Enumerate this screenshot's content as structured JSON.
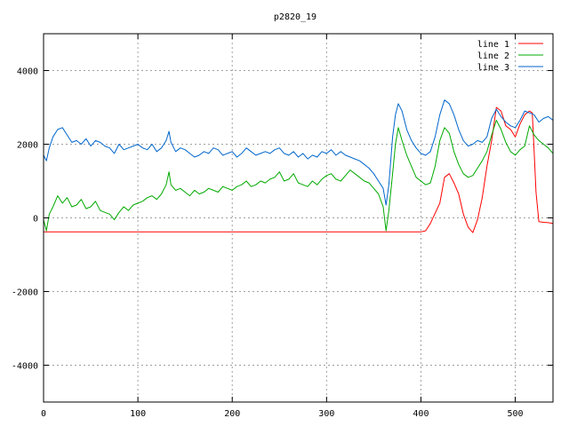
{
  "chart_data": {
    "type": "line",
    "title": "p2820_19",
    "xlabel": "",
    "ylabel": "",
    "xlim": [
      0,
      540
    ],
    "ylim": [
      -5000,
      5000
    ],
    "x_ticks": [
      0,
      100,
      200,
      300,
      400,
      500
    ],
    "y_ticks": [
      -4000,
      -2000,
      0,
      2000,
      4000
    ],
    "grid": true,
    "legend_position": "top-right",
    "series": [
      {
        "name": "line 1",
        "color": "#ff0000",
        "x": [
          0,
          100,
          200,
          300,
          360,
          400,
          405,
          410,
          420,
          425,
          430,
          435,
          440,
          445,
          450,
          455,
          460,
          465,
          470,
          475,
          480,
          485,
          490,
          495,
          500,
          505,
          510,
          515,
          518,
          520,
          522,
          525,
          530,
          535,
          540
        ],
        "y": [
          -380,
          -380,
          -380,
          -380,
          -380,
          -380,
          -350,
          -150,
          400,
          1100,
          1200,
          950,
          650,
          100,
          -250,
          -400,
          -50,
          550,
          1400,
          2100,
          3000,
          2900,
          2500,
          2400,
          2200,
          2550,
          2800,
          2900,
          2850,
          1800,
          700,
          -100,
          -120,
          -130,
          -150
        ]
      },
      {
        "name": "line 2",
        "color": "#00aa00",
        "x": [
          0,
          3,
          6,
          10,
          15,
          20,
          25,
          30,
          35,
          40,
          45,
          50,
          55,
          60,
          65,
          70,
          75,
          80,
          85,
          90,
          95,
          100,
          105,
          110,
          115,
          120,
          125,
          130,
          133,
          135,
          140,
          145,
          150,
          155,
          160,
          165,
          170,
          175,
          180,
          185,
          190,
          195,
          200,
          205,
          210,
          215,
          220,
          225,
          230,
          235,
          240,
          245,
          250,
          255,
          260,
          265,
          270,
          275,
          280,
          285,
          290,
          295,
          300,
          305,
          310,
          315,
          320,
          325,
          330,
          335,
          340,
          345,
          350,
          355,
          360,
          363,
          366,
          370,
          373,
          376,
          380,
          385,
          390,
          395,
          400,
          405,
          410,
          415,
          420,
          425,
          430,
          435,
          440,
          445,
          450,
          455,
          460,
          465,
          470,
          475,
          480,
          485,
          490,
          495,
          500,
          505,
          510,
          515,
          520,
          525,
          530,
          535,
          540
        ],
        "y": [
          -50,
          -350,
          100,
          300,
          600,
          400,
          550,
          300,
          350,
          500,
          250,
          300,
          450,
          200,
          150,
          100,
          -50,
          150,
          300,
          200,
          350,
          400,
          450,
          550,
          600,
          500,
          650,
          900,
          1250,
          900,
          750,
          800,
          700,
          600,
          750,
          650,
          700,
          800,
          750,
          700,
          850,
          800,
          750,
          850,
          900,
          1000,
          850,
          900,
          1000,
          950,
          1050,
          1100,
          1250,
          1000,
          1050,
          1200,
          950,
          900,
          850,
          1000,
          900,
          1050,
          1150,
          1200,
          1050,
          1000,
          1150,
          1300,
          1200,
          1100,
          1000,
          950,
          800,
          650,
          300,
          -350,
          200,
          1200,
          2000,
          2450,
          2100,
          1700,
          1400,
          1100,
          1000,
          900,
          950,
          1400,
          2100,
          2450,
          2300,
          1800,
          1450,
          1200,
          1100,
          1150,
          1350,
          1550,
          1800,
          2250,
          2650,
          2400,
          2050,
          1800,
          1700,
          1850,
          1950,
          2500,
          2250,
          2100,
          2000,
          1900,
          1750
        ]
      },
      {
        "name": "line 3",
        "color": "#0066cc",
        "x": [
          0,
          3,
          6,
          10,
          15,
          20,
          25,
          30,
          35,
          40,
          45,
          50,
          55,
          60,
          65,
          70,
          75,
          80,
          85,
          90,
          95,
          100,
          105,
          110,
          115,
          120,
          125,
          130,
          133,
          135,
          140,
          145,
          150,
          155,
          160,
          165,
          170,
          175,
          180,
          185,
          190,
          195,
          200,
          205,
          210,
          215,
          220,
          225,
          230,
          235,
          240,
          245,
          250,
          255,
          260,
          265,
          270,
          275,
          280,
          285,
          290,
          295,
          300,
          305,
          310,
          315,
          320,
          325,
          330,
          335,
          340,
          345,
          350,
          355,
          360,
          363,
          366,
          370,
          373,
          376,
          380,
          385,
          390,
          395,
          400,
          405,
          410,
          415,
          420,
          425,
          430,
          435,
          440,
          445,
          450,
          455,
          460,
          465,
          470,
          475,
          480,
          485,
          490,
          495,
          500,
          505,
          510,
          515,
          520,
          525,
          530,
          535,
          540
        ],
        "y": [
          1700,
          1550,
          1900,
          2200,
          2400,
          2450,
          2250,
          2050,
          2100,
          2000,
          2150,
          1950,
          2100,
          2050,
          1950,
          1900,
          1750,
          2000,
          1850,
          1900,
          1950,
          2000,
          1900,
          1850,
          2000,
          1800,
          1900,
          2100,
          2350,
          2050,
          1800,
          1900,
          1850,
          1750,
          1650,
          1700,
          1800,
          1750,
          1900,
          1850,
          1700,
          1750,
          1800,
          1650,
          1750,
          1900,
          1800,
          1700,
          1750,
          1800,
          1750,
          1850,
          1900,
          1750,
          1700,
          1800,
          1650,
          1750,
          1600,
          1700,
          1650,
          1800,
          1750,
          1850,
          1700,
          1800,
          1700,
          1650,
          1600,
          1550,
          1450,
          1350,
          1200,
          1000,
          800,
          350,
          900,
          2200,
          2800,
          3100,
          2900,
          2400,
          2100,
          1900,
          1750,
          1700,
          1800,
          2200,
          2800,
          3200,
          3100,
          2800,
          2400,
          2100,
          1950,
          2000,
          2100,
          2050,
          2200,
          2700,
          2950,
          2750,
          2600,
          2500,
          2450,
          2650,
          2900,
          2850,
          2800,
          2600,
          2700,
          2750,
          2650
        ]
      }
    ]
  }
}
